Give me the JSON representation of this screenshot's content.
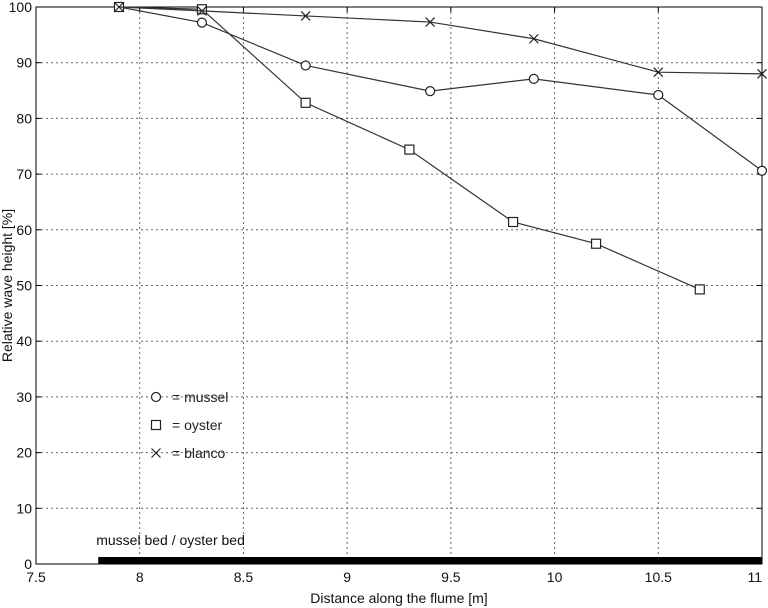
{
  "chart_data": {
    "type": "line",
    "xlabel": "Distance along the flume [m]",
    "ylabel": "Relative wave height [%]",
    "xlim": [
      7.5,
      11
    ],
    "ylim": [
      0,
      100
    ],
    "xticks": [
      7.5,
      8,
      8.5,
      9,
      9.5,
      10,
      10.5,
      11
    ],
    "xtick_labels": [
      "7.5",
      "8",
      "8.5",
      "9",
      "9.5",
      "10",
      "10.5",
      "11"
    ],
    "yticks": [
      0,
      10,
      20,
      30,
      40,
      50,
      60,
      70,
      80,
      90,
      100
    ],
    "ytick_labels": [
      "0",
      "10",
      "20",
      "30",
      "40",
      "50",
      "60",
      "70",
      "80",
      "90",
      "100"
    ],
    "grid": true,
    "legend_position": "lower-left",
    "series": [
      {
        "name": "mussel",
        "legend_label": "= mussel",
        "marker": "circle",
        "x": [
          7.9,
          8.3,
          8.8,
          9.4,
          9.9,
          10.5,
          11.0
        ],
        "y": [
          100,
          97.2,
          89.5,
          84.9,
          87.1,
          84.2,
          70.6
        ]
      },
      {
        "name": "oyster",
        "legend_label": "= oyster",
        "marker": "square",
        "x": [
          7.9,
          8.3,
          8.8,
          9.3,
          9.8,
          10.2,
          10.7
        ],
        "y": [
          100,
          99.6,
          82.8,
          74.4,
          61.4,
          57.5,
          49.3
        ]
      },
      {
        "name": "blanco",
        "legend_label": "= blanco",
        "marker": "x",
        "x": [
          7.9,
          8.3,
          8.8,
          9.4,
          9.9,
          10.5,
          11.0
        ],
        "y": [
          100,
          99.3,
          98.4,
          97.3,
          94.3,
          88.3,
          88.0
        ]
      }
    ],
    "annotations": [
      {
        "text": "mussel bed / oyster bed",
        "x_start": 7.8,
        "x_end": 11.0
      }
    ]
  }
}
